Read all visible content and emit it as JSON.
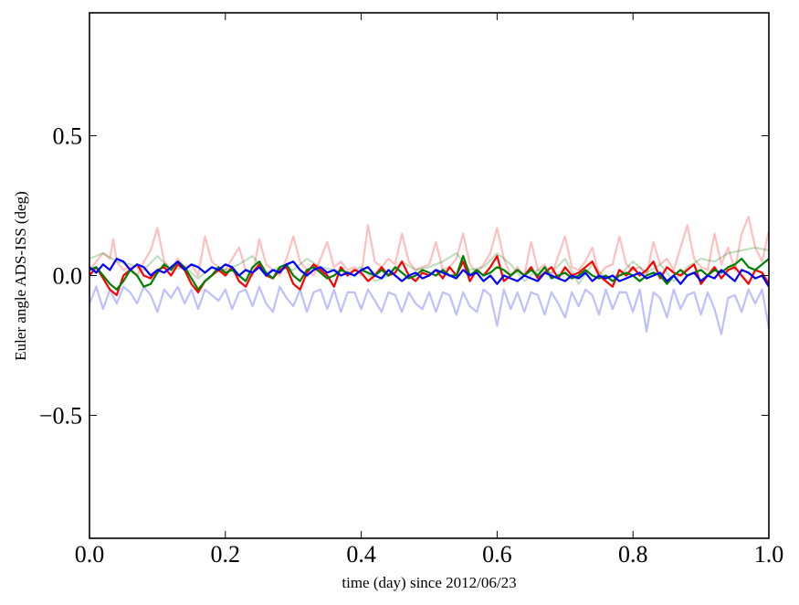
{
  "chart_data": {
    "type": "line",
    "xlabel": "time (day) since 2012/06/23",
    "ylabel": "Euler angle ADS-ISS (deg)",
    "xlim": [
      0.0,
      1.0
    ],
    "ylim": [
      -0.94,
      0.94
    ],
    "xticks": [
      0.0,
      0.2,
      0.4,
      0.6,
      0.8,
      1.0
    ],
    "xtick_labels": [
      "0.0",
      "0.2",
      "0.4",
      "0.6",
      "0.8",
      "1.0"
    ],
    "yticks": [
      -0.5,
      0.0,
      0.5
    ],
    "ytick_labels": [
      "−0.5",
      "0.0",
      "0.5"
    ],
    "grid": false,
    "series": [
      {
        "name": "faint-red",
        "color": "#ff0000",
        "opacity": 0.25,
        "x": [
          0,
          0.01,
          0.02,
          0.03,
          0.035,
          0.04,
          0.05,
          0.06,
          0.07,
          0.08,
          0.09,
          0.1,
          0.11,
          0.12,
          0.13,
          0.14,
          0.15,
          0.16,
          0.17,
          0.18,
          0.19,
          0.2,
          0.21,
          0.22,
          0.23,
          0.24,
          0.25,
          0.26,
          0.27,
          0.28,
          0.29,
          0.3,
          0.31,
          0.32,
          0.33,
          0.34,
          0.35,
          0.36,
          0.37,
          0.38,
          0.39,
          0.4,
          0.41,
          0.42,
          0.43,
          0.44,
          0.45,
          0.46,
          0.47,
          0.48,
          0.49,
          0.5,
          0.51,
          0.52,
          0.53,
          0.54,
          0.55,
          0.56,
          0.57,
          0.58,
          0.59,
          0.6,
          0.61,
          0.62,
          0.63,
          0.64,
          0.65,
          0.66,
          0.67,
          0.68,
          0.69,
          0.7,
          0.71,
          0.72,
          0.73,
          0.74,
          0.75,
          0.76,
          0.77,
          0.78,
          0.79,
          0.8,
          0.81,
          0.82,
          0.83,
          0.84,
          0.85,
          0.86,
          0.87,
          0.88,
          0.89,
          0.9,
          0.91,
          0.92,
          0.93,
          0.94,
          0.95,
          0.96,
          0.97,
          0.98,
          0.99,
          1.0
        ],
        "y": [
          0.02,
          0.05,
          0.08,
          0.06,
          0.13,
          0.05,
          0.02,
          0.03,
          0.0,
          0.05,
          0.09,
          0.17,
          0.05,
          0.02,
          0.06,
          0.03,
          0.04,
          0.0,
          0.14,
          0.05,
          0.03,
          0.02,
          0.06,
          0.1,
          0.02,
          0.0,
          0.13,
          0.04,
          0.02,
          0.0,
          0.06,
          0.14,
          0.05,
          0.02,
          0.0,
          0.06,
          0.12,
          0.03,
          0.05,
          0.02,
          0.03,
          0.0,
          0.18,
          0.05,
          0.03,
          0.06,
          0.04,
          0.15,
          0.05,
          0.02,
          0.03,
          0.04,
          0.12,
          0.02,
          0.03,
          0.06,
          0.15,
          0.04,
          0.01,
          0.04,
          0.08,
          0.17,
          0.06,
          0.0,
          0.03,
          0.0,
          0.12,
          0.02,
          0.04,
          0.0,
          0.07,
          0.14,
          0.03,
          0.02,
          0.05,
          0.1,
          0.0,
          0.03,
          0.04,
          0.14,
          0.04,
          0.02,
          0.03,
          0.0,
          0.12,
          0.04,
          0.06,
          0.02,
          0.1,
          0.18,
          0.06,
          0.03,
          0.02,
          0.15,
          0.04,
          0.1,
          0.02,
          0.15,
          0.21,
          0.1,
          0.05,
          0.16
        ]
      },
      {
        "name": "faint-green",
        "color": "#008000",
        "opacity": 0.25,
        "x": [
          0,
          0.02,
          0.04,
          0.06,
          0.08,
          0.1,
          0.12,
          0.14,
          0.16,
          0.18,
          0.2,
          0.22,
          0.24,
          0.26,
          0.28,
          0.3,
          0.32,
          0.34,
          0.36,
          0.38,
          0.4,
          0.42,
          0.44,
          0.46,
          0.48,
          0.5,
          0.52,
          0.54,
          0.56,
          0.58,
          0.6,
          0.62,
          0.64,
          0.66,
          0.68,
          0.7,
          0.72,
          0.74,
          0.76,
          0.78,
          0.8,
          0.82,
          0.84,
          0.86,
          0.88,
          0.9,
          0.92,
          0.94,
          0.96,
          0.98,
          1.0
        ],
        "y": [
          0.06,
          0.08,
          0.05,
          0.04,
          0.02,
          0.07,
          0.02,
          0.03,
          -0.01,
          0.03,
          0.02,
          0.04,
          0.07,
          0.01,
          0.03,
          0.02,
          0.06,
          0.03,
          0.02,
          0.01,
          0.03,
          -0.02,
          0.0,
          0.05,
          0.02,
          0.03,
          0.05,
          0.08,
          0.02,
          0.03,
          0.08,
          0.04,
          -0.02,
          0.02,
          0.01,
          0.06,
          -0.03,
          0.04,
          -0.01,
          0.0,
          0.05,
          0.01,
          0.04,
          -0.02,
          0.03,
          0.06,
          0.05,
          0.08,
          0.09,
          0.1,
          0.09
        ]
      },
      {
        "name": "faint-blue",
        "color": "#0000ff",
        "opacity": 0.25,
        "x": [
          0,
          0.01,
          0.02,
          0.03,
          0.04,
          0.05,
          0.06,
          0.07,
          0.08,
          0.09,
          0.1,
          0.11,
          0.12,
          0.13,
          0.14,
          0.15,
          0.16,
          0.17,
          0.18,
          0.19,
          0.2,
          0.21,
          0.22,
          0.23,
          0.24,
          0.25,
          0.26,
          0.27,
          0.28,
          0.29,
          0.3,
          0.31,
          0.32,
          0.33,
          0.34,
          0.35,
          0.36,
          0.37,
          0.38,
          0.39,
          0.4,
          0.41,
          0.42,
          0.43,
          0.44,
          0.45,
          0.46,
          0.47,
          0.48,
          0.49,
          0.5,
          0.51,
          0.52,
          0.53,
          0.54,
          0.55,
          0.56,
          0.57,
          0.58,
          0.59,
          0.6,
          0.61,
          0.62,
          0.63,
          0.64,
          0.65,
          0.66,
          0.67,
          0.68,
          0.69,
          0.7,
          0.71,
          0.72,
          0.73,
          0.74,
          0.75,
          0.76,
          0.77,
          0.78,
          0.79,
          0.8,
          0.81,
          0.82,
          0.83,
          0.84,
          0.85,
          0.86,
          0.87,
          0.88,
          0.89,
          0.9,
          0.91,
          0.92,
          0.93,
          0.94,
          0.95,
          0.96,
          0.97,
          0.98,
          0.99,
          1.0
        ],
        "y": [
          -0.1,
          -0.04,
          -0.12,
          -0.05,
          -0.1,
          -0.04,
          -0.06,
          -0.1,
          -0.04,
          -0.07,
          -0.13,
          -0.05,
          -0.08,
          -0.04,
          -0.1,
          -0.05,
          -0.12,
          -0.05,
          -0.07,
          -0.09,
          -0.05,
          -0.12,
          -0.06,
          -0.05,
          -0.11,
          -0.04,
          -0.1,
          -0.13,
          -0.04,
          -0.08,
          -0.11,
          -0.05,
          -0.13,
          -0.06,
          -0.05,
          -0.12,
          -0.05,
          -0.13,
          -0.06,
          -0.06,
          -0.12,
          -0.05,
          -0.09,
          -0.13,
          -0.06,
          -0.07,
          -0.13,
          -0.06,
          -0.1,
          -0.12,
          -0.06,
          -0.13,
          -0.06,
          -0.07,
          -0.14,
          -0.06,
          -0.11,
          -0.13,
          -0.05,
          -0.07,
          -0.18,
          -0.05,
          -0.12,
          -0.06,
          -0.13,
          -0.06,
          -0.07,
          -0.14,
          -0.06,
          -0.1,
          -0.15,
          -0.06,
          -0.11,
          -0.05,
          -0.07,
          -0.14,
          -0.05,
          -0.12,
          -0.06,
          -0.06,
          -0.13,
          -0.05,
          -0.2,
          -0.06,
          -0.08,
          -0.15,
          -0.05,
          -0.12,
          -0.07,
          -0.06,
          -0.14,
          -0.06,
          -0.12,
          -0.21,
          -0.08,
          -0.07,
          -0.13,
          -0.05,
          -0.1,
          -0.05,
          -0.19
        ]
      },
      {
        "name": "red",
        "color": "#ff0000",
        "opacity": 1,
        "x": [
          0,
          0.01,
          0.02,
          0.03,
          0.04,
          0.05,
          0.06,
          0.07,
          0.08,
          0.09,
          0.1,
          0.11,
          0.12,
          0.13,
          0.14,
          0.15,
          0.16,
          0.17,
          0.18,
          0.19,
          0.2,
          0.21,
          0.22,
          0.23,
          0.24,
          0.25,
          0.26,
          0.27,
          0.28,
          0.29,
          0.3,
          0.31,
          0.32,
          0.33,
          0.34,
          0.35,
          0.36,
          0.37,
          0.38,
          0.39,
          0.4,
          0.41,
          0.42,
          0.43,
          0.44,
          0.45,
          0.46,
          0.47,
          0.48,
          0.49,
          0.5,
          0.51,
          0.52,
          0.53,
          0.54,
          0.55,
          0.56,
          0.57,
          0.58,
          0.59,
          0.6,
          0.61,
          0.62,
          0.63,
          0.64,
          0.65,
          0.66,
          0.67,
          0.68,
          0.69,
          0.7,
          0.71,
          0.72,
          0.73,
          0.74,
          0.75,
          0.76,
          0.77,
          0.78,
          0.79,
          0.8,
          0.81,
          0.82,
          0.83,
          0.84,
          0.85,
          0.86,
          0.87,
          0.88,
          0.89,
          0.9,
          0.91,
          0.92,
          0.93,
          0.94,
          0.95,
          0.96,
          0.97,
          0.98,
          0.99,
          1.0
        ],
        "y": [
          0.0,
          0.03,
          -0.01,
          -0.05,
          -0.07,
          0.0,
          0.02,
          0.04,
          0.0,
          -0.01,
          0.02,
          0.03,
          0.0,
          0.04,
          0.02,
          -0.03,
          -0.06,
          -0.02,
          0.0,
          0.02,
          0.0,
          0.03,
          -0.02,
          -0.04,
          0.01,
          0.04,
          0.0,
          -0.01,
          0.02,
          0.03,
          -0.03,
          -0.05,
          0.01,
          0.04,
          0.02,
          0.0,
          -0.04,
          0.03,
          0.0,
          0.02,
          0.01,
          -0.02,
          0.0,
          0.03,
          0.0,
          0.01,
          0.05,
          0.0,
          -0.02,
          0.01,
          0.0,
          0.02,
          -0.01,
          0.03,
          0.0,
          0.05,
          -0.02,
          0.02,
          0.0,
          0.03,
          0.07,
          -0.02,
          0.0,
          0.02,
          0.0,
          0.03,
          -0.01,
          0.01,
          0.03,
          -0.01,
          0.03,
          0.0,
          0.01,
          0.03,
          0.05,
          0.0,
          -0.02,
          -0.04,
          0.02,
          0.0,
          0.03,
          0.0,
          0.02,
          0.05,
          -0.01,
          0.03,
          0.01,
          0.0,
          0.02,
          0.04,
          -0.03,
          0.0,
          0.03,
          -0.01,
          0.02,
          0.03,
          0.0,
          -0.03,
          0.02,
          0.01,
          -0.03
        ]
      },
      {
        "name": "green",
        "color": "#008000",
        "opacity": 1,
        "x": [
          0,
          0.01,
          0.02,
          0.03,
          0.04,
          0.05,
          0.06,
          0.07,
          0.08,
          0.09,
          0.1,
          0.11,
          0.12,
          0.13,
          0.14,
          0.15,
          0.16,
          0.17,
          0.18,
          0.19,
          0.2,
          0.21,
          0.22,
          0.23,
          0.24,
          0.25,
          0.26,
          0.27,
          0.28,
          0.29,
          0.3,
          0.31,
          0.32,
          0.33,
          0.34,
          0.35,
          0.36,
          0.37,
          0.38,
          0.39,
          0.4,
          0.41,
          0.42,
          0.43,
          0.44,
          0.45,
          0.46,
          0.47,
          0.48,
          0.49,
          0.5,
          0.51,
          0.52,
          0.53,
          0.54,
          0.55,
          0.56,
          0.57,
          0.58,
          0.59,
          0.6,
          0.61,
          0.62,
          0.63,
          0.64,
          0.65,
          0.66,
          0.67,
          0.68,
          0.69,
          0.7,
          0.71,
          0.72,
          0.73,
          0.74,
          0.75,
          0.76,
          0.77,
          0.78,
          0.79,
          0.8,
          0.81,
          0.82,
          0.83,
          0.84,
          0.85,
          0.86,
          0.87,
          0.88,
          0.89,
          0.9,
          0.91,
          0.92,
          0.93,
          0.94,
          0.95,
          0.96,
          0.97,
          0.98,
          0.99,
          1.0
        ],
        "y": [
          0.02,
          0.03,
          0.0,
          -0.03,
          -0.05,
          -0.02,
          0.02,
          0.0,
          -0.04,
          -0.03,
          0.01,
          0.04,
          0.02,
          0.05,
          0.03,
          -0.01,
          -0.05,
          -0.02,
          0.0,
          0.03,
          0.01,
          0.02,
          0.0,
          -0.02,
          0.03,
          0.05,
          0.01,
          -0.01,
          0.03,
          0.04,
          0.0,
          -0.02,
          0.02,
          0.03,
          0.01,
          -0.01,
          0.0,
          0.02,
          0.01,
          0.0,
          0.02,
          0.01,
          0.0,
          0.02,
          0.0,
          0.03,
          0.01,
          -0.01,
          0.0,
          0.02,
          0.01,
          0.0,
          0.02,
          0.0,
          0.0,
          0.07,
          0.0,
          0.02,
          0.0,
          0.01,
          0.03,
          0.02,
          0.0,
          0.02,
          0.0,
          0.02,
          0.0,
          0.03,
          -0.01,
          0.0,
          0.01,
          -0.01,
          0.0,
          0.02,
          0.0,
          -0.01,
          0.0,
          -0.02,
          0.0,
          0.01,
          0.0,
          -0.02,
          0.0,
          0.01,
          0.0,
          -0.03,
          0.0,
          0.02,
          0.0,
          0.01,
          0.02,
          0.0,
          0.02,
          0.01,
          0.03,
          0.04,
          0.06,
          0.03,
          0.02,
          0.04,
          0.06
        ]
      },
      {
        "name": "blue",
        "color": "#0000ff",
        "opacity": 1,
        "x": [
          0,
          0.01,
          0.02,
          0.03,
          0.04,
          0.05,
          0.06,
          0.07,
          0.08,
          0.09,
          0.1,
          0.11,
          0.12,
          0.13,
          0.14,
          0.15,
          0.16,
          0.17,
          0.18,
          0.19,
          0.2,
          0.21,
          0.22,
          0.23,
          0.24,
          0.25,
          0.26,
          0.27,
          0.28,
          0.29,
          0.3,
          0.31,
          0.32,
          0.33,
          0.34,
          0.35,
          0.36,
          0.37,
          0.38,
          0.39,
          0.4,
          0.41,
          0.42,
          0.43,
          0.44,
          0.45,
          0.46,
          0.47,
          0.48,
          0.49,
          0.5,
          0.51,
          0.52,
          0.53,
          0.54,
          0.55,
          0.56,
          0.57,
          0.58,
          0.59,
          0.6,
          0.61,
          0.62,
          0.63,
          0.64,
          0.65,
          0.66,
          0.67,
          0.68,
          0.69,
          0.7,
          0.71,
          0.72,
          0.73,
          0.74,
          0.75,
          0.76,
          0.77,
          0.78,
          0.79,
          0.8,
          0.81,
          0.82,
          0.83,
          0.84,
          0.85,
          0.86,
          0.87,
          0.88,
          0.89,
          0.9,
          0.91,
          0.92,
          0.93,
          0.94,
          0.95,
          0.96,
          0.97,
          0.98,
          0.99,
          1.0
        ],
        "y": [
          0.03,
          0.01,
          0.04,
          0.02,
          0.06,
          0.05,
          0.02,
          0.04,
          0.03,
          0.0,
          0.02,
          0.01,
          0.03,
          0.05,
          0.02,
          0.04,
          0.03,
          0.01,
          0.03,
          0.02,
          0.04,
          0.03,
          0.0,
          0.02,
          0.01,
          0.03,
          0.0,
          0.02,
          0.01,
          0.04,
          0.05,
          0.02,
          0.0,
          0.02,
          0.03,
          0.01,
          0.02,
          0.0,
          0.01,
          0.0,
          0.02,
          0.03,
          0.0,
          -0.01,
          0.02,
          0.0,
          -0.02,
          0.0,
          0.01,
          -0.01,
          0.0,
          0.02,
          0.01,
          0.0,
          -0.01,
          0.02,
          0.0,
          0.01,
          -0.02,
          0.0,
          -0.03,
          0.0,
          -0.01,
          -0.02,
          0.0,
          -0.01,
          -0.02,
          0.01,
          0.0,
          -0.01,
          -0.02,
          0.0,
          -0.01,
          0.01,
          -0.02,
          0.0,
          -0.01,
          0.0,
          -0.02,
          -0.01,
          0.0,
          0.01,
          -0.01,
          0.0,
          0.01,
          -0.02,
          0.0,
          -0.03,
          0.0,
          0.01,
          -0.02,
          0.0,
          -0.01,
          0.02,
          0.0,
          -0.02,
          0.02,
          0.01,
          -0.01,
          0.0,
          -0.04
        ]
      }
    ]
  }
}
